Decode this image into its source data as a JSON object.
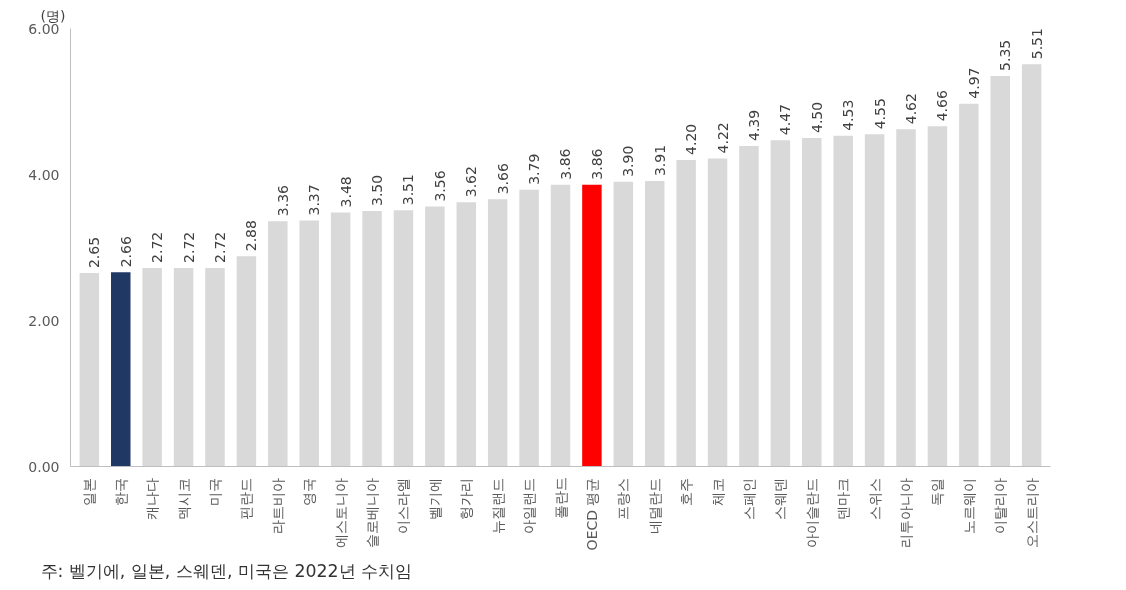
{
  "chart_data": {
    "type": "bar",
    "ylabel": "(명)",
    "categories": [
      "일본",
      "한국",
      "캐나다",
      "멕시코",
      "미국",
      "핀란드",
      "라트비아",
      "영국",
      "에스토니아",
      "슬로베니아",
      "이스라엘",
      "벨기에",
      "헝가리",
      "뉴질랜드",
      "아일랜드",
      "폴란드",
      "OECD 평균",
      "프랑스",
      "네덜란드",
      "호주",
      "체코",
      "스페인",
      "스웨덴",
      "아이슬란드",
      "덴마크",
      "스위스",
      "리투아니아",
      "독일",
      "노르웨이",
      "이탈리아",
      "오스트리아"
    ],
    "values": [
      2.65,
      2.66,
      2.72,
      2.72,
      2.72,
      2.88,
      3.36,
      3.37,
      3.48,
      3.5,
      3.51,
      3.56,
      3.62,
      3.66,
      3.79,
      3.86,
      3.86,
      3.9,
      3.91,
      4.2,
      4.22,
      4.39,
      4.47,
      4.5,
      4.53,
      4.55,
      4.62,
      4.66,
      4.97,
      5.35,
      5.51
    ],
    "colors": [
      "#d9d9d9",
      "#1f3864",
      "#d9d9d9",
      "#d9d9d9",
      "#d9d9d9",
      "#d9d9d9",
      "#d9d9d9",
      "#d9d9d9",
      "#d9d9d9",
      "#d9d9d9",
      "#d9d9d9",
      "#d9d9d9",
      "#d9d9d9",
      "#d9d9d9",
      "#d9d9d9",
      "#d9d9d9",
      "#ff0000",
      "#d9d9d9",
      "#d9d9d9",
      "#d9d9d9",
      "#d9d9d9",
      "#d9d9d9",
      "#d9d9d9",
      "#d9d9d9",
      "#d9d9d9",
      "#d9d9d9",
      "#d9d9d9",
      "#d9d9d9",
      "#d9d9d9",
      "#d9d9d9",
      "#d9d9d9"
    ],
    "value_labels": [
      "2.65",
      "2.66",
      "2.72",
      "2.72",
      "2.72",
      "2.88",
      "3.36",
      "3.37",
      "3.48",
      "3.50",
      "3.51",
      "3.56",
      "3.62",
      "3.66",
      "3.79",
      "3.86",
      "3.86",
      "3.90",
      "3.91",
      "4.20",
      "4.22",
      "4.39",
      "4.47",
      "4.50",
      "4.53",
      "4.55",
      "4.62",
      "4.66",
      "4.97",
      "5.35",
      "5.51"
    ],
    "ylim": [
      0,
      6
    ],
    "yticks": [
      {
        "value": 0,
        "label": "0.00"
      },
      {
        "value": 2,
        "label": "2.00"
      },
      {
        "value": 4,
        "label": "4.00"
      },
      {
        "value": 6,
        "label": "6.00"
      }
    ],
    "grid": false,
    "annotations": [
      "주: 벨기에, 일본, 스웨덴, 미국은 2022년 수치임"
    ]
  }
}
